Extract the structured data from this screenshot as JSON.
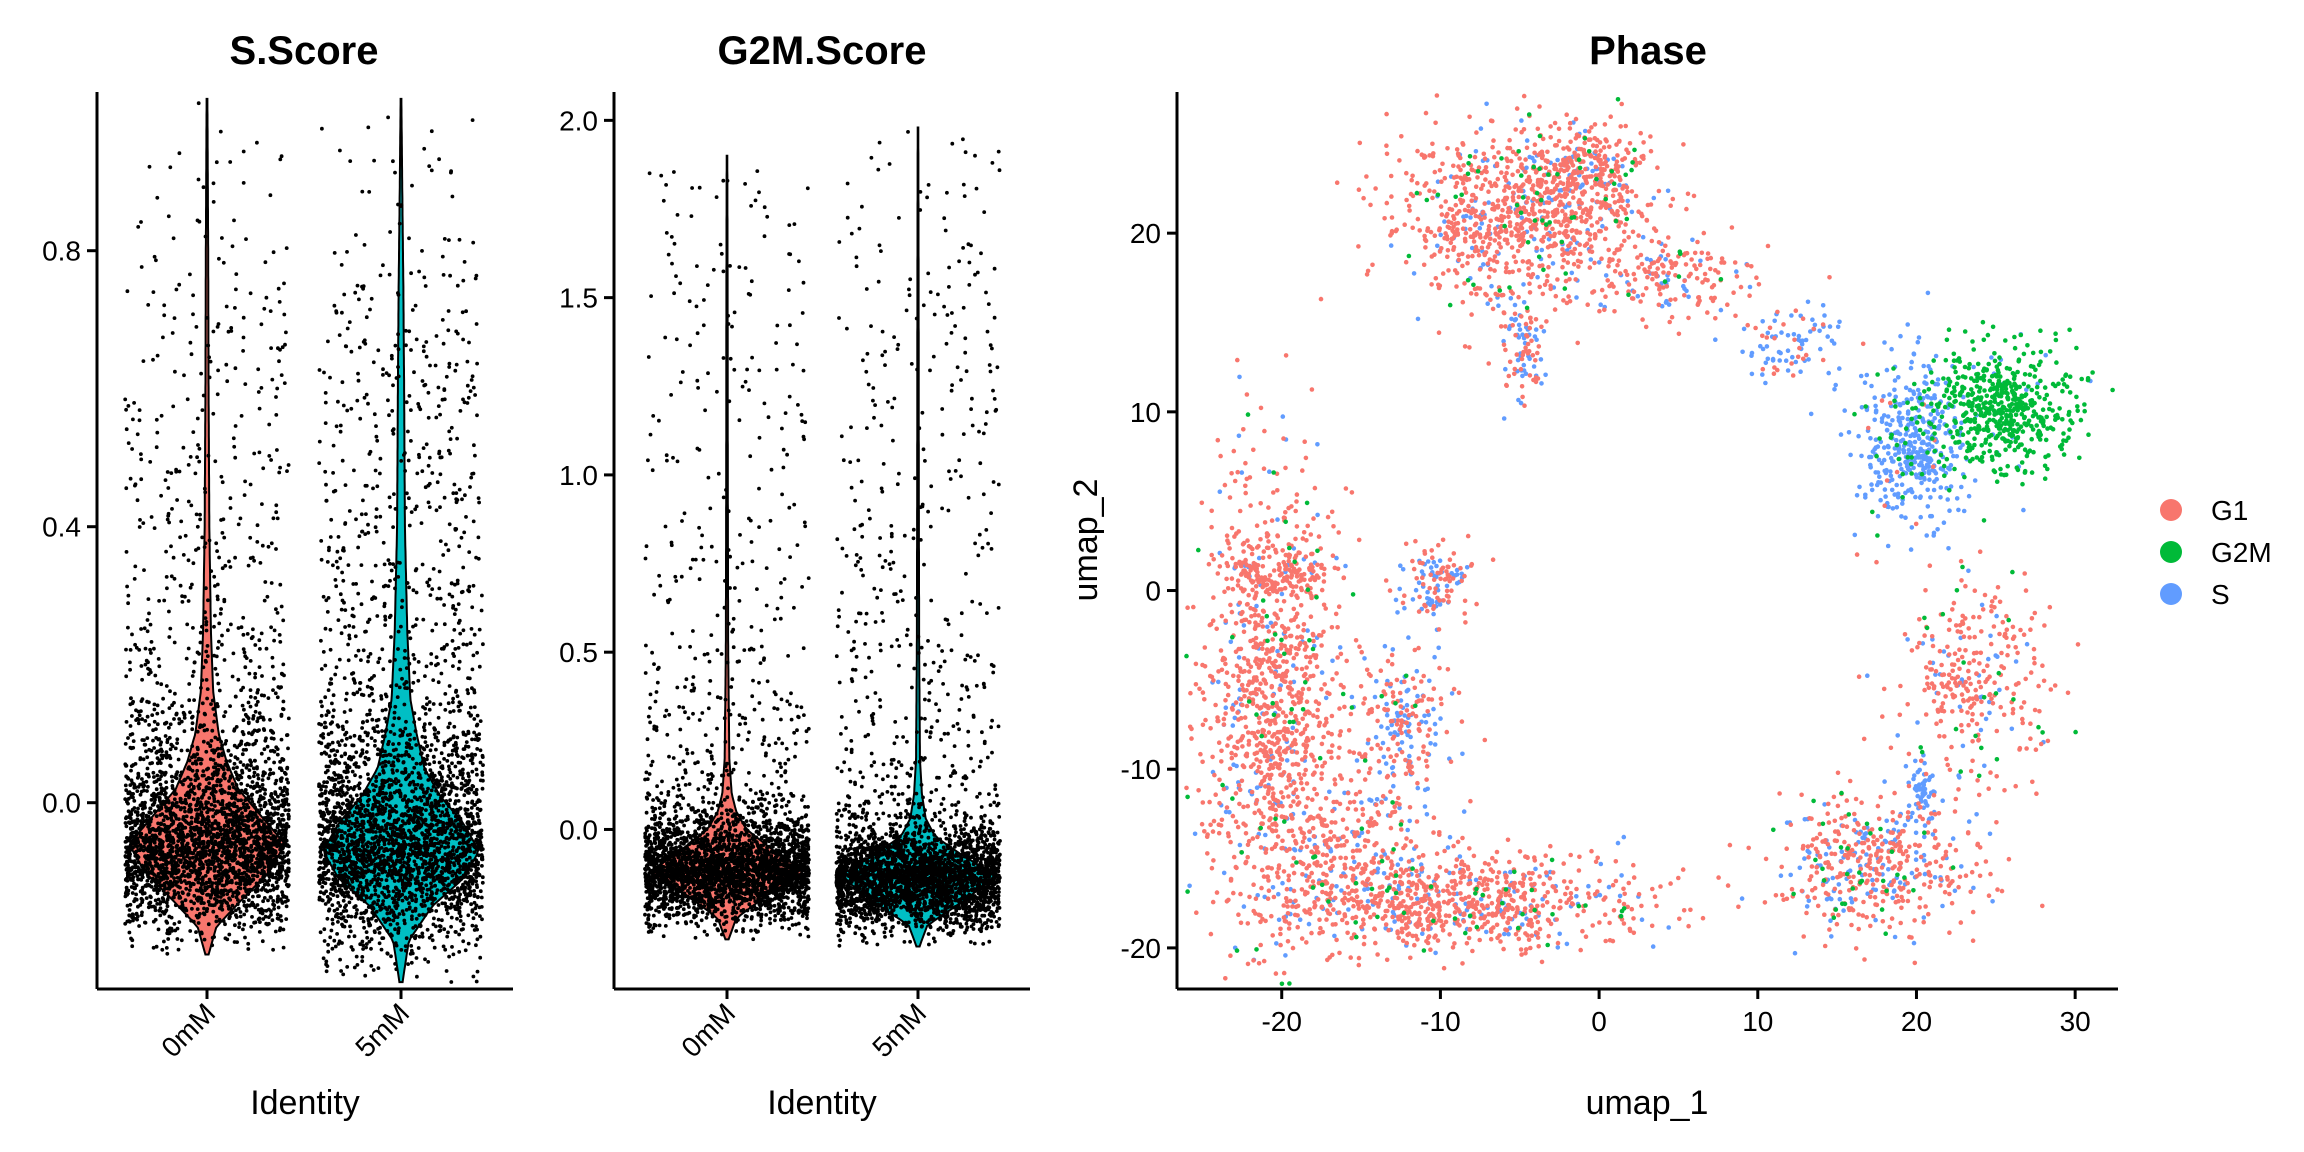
{
  "figure": {
    "background": "#ffffff",
    "colors": {
      "zero_mM": "#F8766D",
      "five_mM": "#00BFC4",
      "G1": "#F8766D",
      "G2M": "#00BA38",
      "S": "#619CFF",
      "points": "#000000"
    }
  },
  "chart_data": [
    {
      "type": "violin",
      "title": "S.Score",
      "xlabel": "Identity",
      "ylabel": "",
      "categories": [
        "0mM",
        "5mM"
      ],
      "ylim": [
        -0.27,
        1.03
      ],
      "yticks": [
        0.0,
        0.4,
        0.8
      ],
      "ytick_labels": [
        "0.0",
        "0.4",
        "0.8"
      ],
      "series": [
        {
          "category": "0mM",
          "color": "#F8766D",
          "min": -0.22,
          "max": 1.02,
          "mode": -0.06,
          "median": -0.06,
          "profile": [
            [
              -0.22,
              0.02
            ],
            [
              -0.18,
              0.12
            ],
            [
              -0.14,
              0.45
            ],
            [
              -0.1,
              0.8
            ],
            [
              -0.06,
              1.0
            ],
            [
              -0.02,
              0.7
            ],
            [
              0.02,
              0.4
            ],
            [
              0.06,
              0.25
            ],
            [
              0.1,
              0.15
            ],
            [
              0.16,
              0.08
            ],
            [
              0.25,
              0.05
            ],
            [
              0.4,
              0.03
            ],
            [
              0.6,
              0.02
            ],
            [
              0.8,
              0.015
            ],
            [
              1.02,
              0.005
            ]
          ]
        },
        {
          "category": "5mM",
          "color": "#00BFC4",
          "min": -0.26,
          "max": 1.02,
          "mode": -0.07,
          "median": -0.06,
          "profile": [
            [
              -0.26,
              0.02
            ],
            [
              -0.2,
              0.1
            ],
            [
              -0.15,
              0.4
            ],
            [
              -0.11,
              0.8
            ],
            [
              -0.07,
              1.0
            ],
            [
              -0.03,
              0.8
            ],
            [
              0.01,
              0.5
            ],
            [
              0.05,
              0.3
            ],
            [
              0.1,
              0.2
            ],
            [
              0.15,
              0.12
            ],
            [
              0.25,
              0.08
            ],
            [
              0.4,
              0.05
            ],
            [
              0.6,
              0.04
            ],
            [
              0.75,
              0.03
            ],
            [
              0.9,
              0.015
            ],
            [
              1.02,
              0.005
            ]
          ]
        }
      ]
    },
    {
      "type": "violin",
      "title": "G2M.Score",
      "xlabel": "Identity",
      "ylabel": "",
      "categories": [
        "0mM",
        "5mM"
      ],
      "ylim": [
        -0.45,
        2.08
      ],
      "yticks": [
        0.0,
        0.5,
        1.0,
        1.5,
        2.0
      ],
      "ytick_labels": [
        "0.0",
        "0.5",
        "1.0",
        "1.5",
        "2.0"
      ],
      "series": [
        {
          "category": "0mM",
          "color": "#F8766D",
          "min": -0.31,
          "max": 1.9,
          "mode": -0.12,
          "median": -0.12,
          "profile": [
            [
              -0.31,
              0.02
            ],
            [
              -0.25,
              0.12
            ],
            [
              -0.18,
              0.55
            ],
            [
              -0.12,
              1.0
            ],
            [
              -0.06,
              0.6
            ],
            [
              0.0,
              0.25
            ],
            [
              0.05,
              0.12
            ],
            [
              0.1,
              0.06
            ],
            [
              0.2,
              0.03
            ],
            [
              0.5,
              0.015
            ],
            [
              1.0,
              0.01
            ],
            [
              1.5,
              0.008
            ],
            [
              1.9,
              0.004
            ]
          ]
        },
        {
          "category": "5mM",
          "color": "#00BFC4",
          "min": -0.33,
          "max": 1.98,
          "mode": -0.13,
          "median": -0.13,
          "profile": [
            [
              -0.33,
              0.02
            ],
            [
              -0.27,
              0.12
            ],
            [
              -0.2,
              0.6
            ],
            [
              -0.13,
              1.0
            ],
            [
              -0.07,
              0.55
            ],
            [
              -0.02,
              0.22
            ],
            [
              0.03,
              0.1
            ],
            [
              0.1,
              0.05
            ],
            [
              0.2,
              0.025
            ],
            [
              0.5,
              0.015
            ],
            [
              1.0,
              0.01
            ],
            [
              1.5,
              0.008
            ],
            [
              1.98,
              0.004
            ]
          ]
        }
      ]
    },
    {
      "type": "scatter",
      "title": "Phase",
      "xlabel": "umap_1",
      "ylabel": "umap_2",
      "xlim": [
        -26.6,
        32.7
      ],
      "ylim": [
        -22.3,
        27.9
      ],
      "xticks": [
        -20,
        -10,
        0,
        10,
        20,
        30
      ],
      "xtick_labels": [
        "-20",
        "-10",
        "0",
        "10",
        "20",
        "30"
      ],
      "yticks": [
        -20,
        -10,
        0,
        10,
        20
      ],
      "ytick_labels": [
        "-20",
        "-10",
        "0",
        "10",
        "20"
      ],
      "legend": {
        "position": "right",
        "entries": [
          "G1",
          "G2M",
          "S"
        ]
      },
      "series": [
        {
          "name": "G1",
          "color": "#F8766D"
        },
        {
          "name": "G2M",
          "color": "#00BA38"
        },
        {
          "name": "S",
          "color": "#619CFF"
        }
      ],
      "clusters": [
        {
          "region": "top-left arm",
          "cx": -5,
          "cy": 21,
          "sx": 4.2,
          "sy": 2.4,
          "n": 900,
          "mix": [
            0.82,
            0.04,
            0.14
          ]
        },
        {
          "region": "top peak",
          "cx": -1,
          "cy": 23.5,
          "sx": 2.0,
          "sy": 1.3,
          "n": 260,
          "mix": [
            0.82,
            0.06,
            0.12
          ]
        },
        {
          "region": "top arm tail",
          "cx": 5,
          "cy": 17.5,
          "sx": 2.5,
          "sy": 1.1,
          "n": 160,
          "mix": [
            0.8,
            0.05,
            0.15
          ]
        },
        {
          "region": "left dip",
          "cx": -4.8,
          "cy": 13.5,
          "sx": 0.7,
          "sy": 1.5,
          "n": 90,
          "mix": [
            0.55,
            0.0,
            0.45
          ]
        },
        {
          "region": "bridge",
          "cx": 12.5,
          "cy": 13.8,
          "sx": 1.7,
          "sy": 1.3,
          "n": 90,
          "mix": [
            0.35,
            0.05,
            0.6
          ]
        },
        {
          "region": "cycling S",
          "cx": 19.7,
          "cy": 8.3,
          "sx": 1.6,
          "sy": 2.3,
          "n": 420,
          "mix": [
            0.03,
            0.07,
            0.9
          ]
        },
        {
          "region": "cycling G2M",
          "cx": 25.2,
          "cy": 10.2,
          "sx": 2.4,
          "sy": 1.7,
          "n": 560,
          "mix": [
            0.0,
            0.96,
            0.04
          ]
        },
        {
          "region": "right arm",
          "cx": 23.8,
          "cy": -4.8,
          "sx": 2.3,
          "sy": 2.8,
          "n": 320,
          "mix": [
            0.82,
            0.08,
            0.1
          ]
        },
        {
          "region": "left arc",
          "cx": -20.7,
          "cy": -6,
          "sx": 2.2,
          "sy": 6.5,
          "n": 1050,
          "mix": [
            0.86,
            0.04,
            0.1
          ]
        },
        {
          "region": "bottom arc",
          "cx": -9,
          "cy": -17.6,
          "sx": 6.0,
          "sy": 1.4,
          "n": 820,
          "mix": [
            0.8,
            0.05,
            0.15
          ]
        },
        {
          "region": "lower middle",
          "cx": -15.5,
          "cy": -14,
          "sx": 2.8,
          "sy": 2.5,
          "n": 300,
          "mix": [
            0.7,
            0.06,
            0.24
          ]
        },
        {
          "region": "mid-left",
          "cx": -12.3,
          "cy": -7.2,
          "sx": 1.5,
          "sy": 1.8,
          "n": 190,
          "mix": [
            0.55,
            0.03,
            0.42
          ]
        },
        {
          "region": "upper-left blob",
          "cx": -10.2,
          "cy": 0.5,
          "sx": 1.2,
          "sy": 1.0,
          "n": 120,
          "mix": [
            0.6,
            0.0,
            0.4
          ]
        },
        {
          "region": "top of arc",
          "cx": -20.5,
          "cy": 1.0,
          "sx": 1.8,
          "sy": 0.8,
          "n": 130,
          "mix": [
            0.95,
            0.0,
            0.05
          ]
        },
        {
          "region": "bottom right",
          "cx": 17.5,
          "cy": -15.3,
          "sx": 3.1,
          "sy": 1.8,
          "n": 480,
          "mix": [
            0.72,
            0.06,
            0.22
          ]
        },
        {
          "region": "bottom right spur",
          "cx": 20.2,
          "cy": -11.3,
          "sx": 0.6,
          "sy": 1.0,
          "n": 60,
          "mix": [
            0.05,
            0.0,
            0.95
          ]
        }
      ]
    }
  ]
}
